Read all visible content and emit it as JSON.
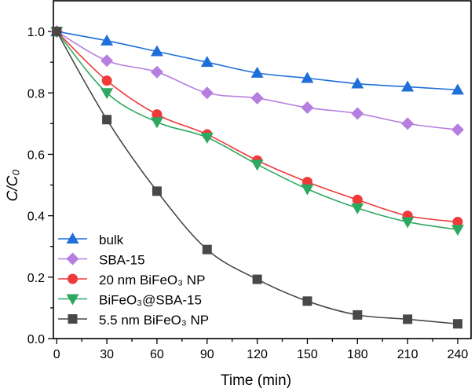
{
  "chart_data": {
    "type": "line",
    "title": "",
    "xlabel": "Time (min)",
    "ylabel": "C/C₀",
    "xlim": [
      -2,
      248
    ],
    "ylim": [
      0,
      1.1
    ],
    "x_ticks": [
      0,
      30,
      60,
      90,
      120,
      150,
      180,
      210,
      240
    ],
    "y_ticks": [
      0.0,
      0.2,
      0.4,
      0.6,
      0.8,
      1.0
    ],
    "y_tick_labels": [
      "0.0",
      "0.2",
      "0.4",
      "0.6",
      "0.8",
      "1.0"
    ],
    "grid": false,
    "legend_position": "bottom-left",
    "x": [
      0,
      30,
      60,
      90,
      120,
      150,
      180,
      210,
      240
    ],
    "series": [
      {
        "name": "bulk",
        "marker": "triangle-up",
        "color": "#1f6fd8",
        "values": [
          1.0,
          0.97,
          0.935,
          0.9,
          0.865,
          0.848,
          0.83,
          0.82,
          0.81
        ]
      },
      {
        "name": "SBA-15",
        "marker": "diamond",
        "color": "#b57ee0",
        "values": [
          1.0,
          0.905,
          0.868,
          0.8,
          0.783,
          0.752,
          0.733,
          0.7,
          0.68
        ]
      },
      {
        "name": "20 nm BiFeO₃ NP",
        "marker": "circle",
        "color": "#f03a3a",
        "values": [
          1.0,
          0.84,
          0.73,
          0.665,
          0.58,
          0.51,
          0.452,
          0.4,
          0.38
        ]
      },
      {
        "name": "BiFeO₃@SBA-15",
        "marker": "triangle-down",
        "color": "#2ea860",
        "values": [
          1.0,
          0.8,
          0.705,
          0.655,
          0.567,
          0.487,
          0.425,
          0.38,
          0.355
        ]
      },
      {
        "name": "5.5 nm BiFeO₃ NP",
        "marker": "square",
        "color": "#484848",
        "values": [
          1.0,
          0.713,
          0.48,
          0.29,
          0.193,
          0.122,
          0.077,
          0.063,
          0.048
        ]
      }
    ]
  }
}
